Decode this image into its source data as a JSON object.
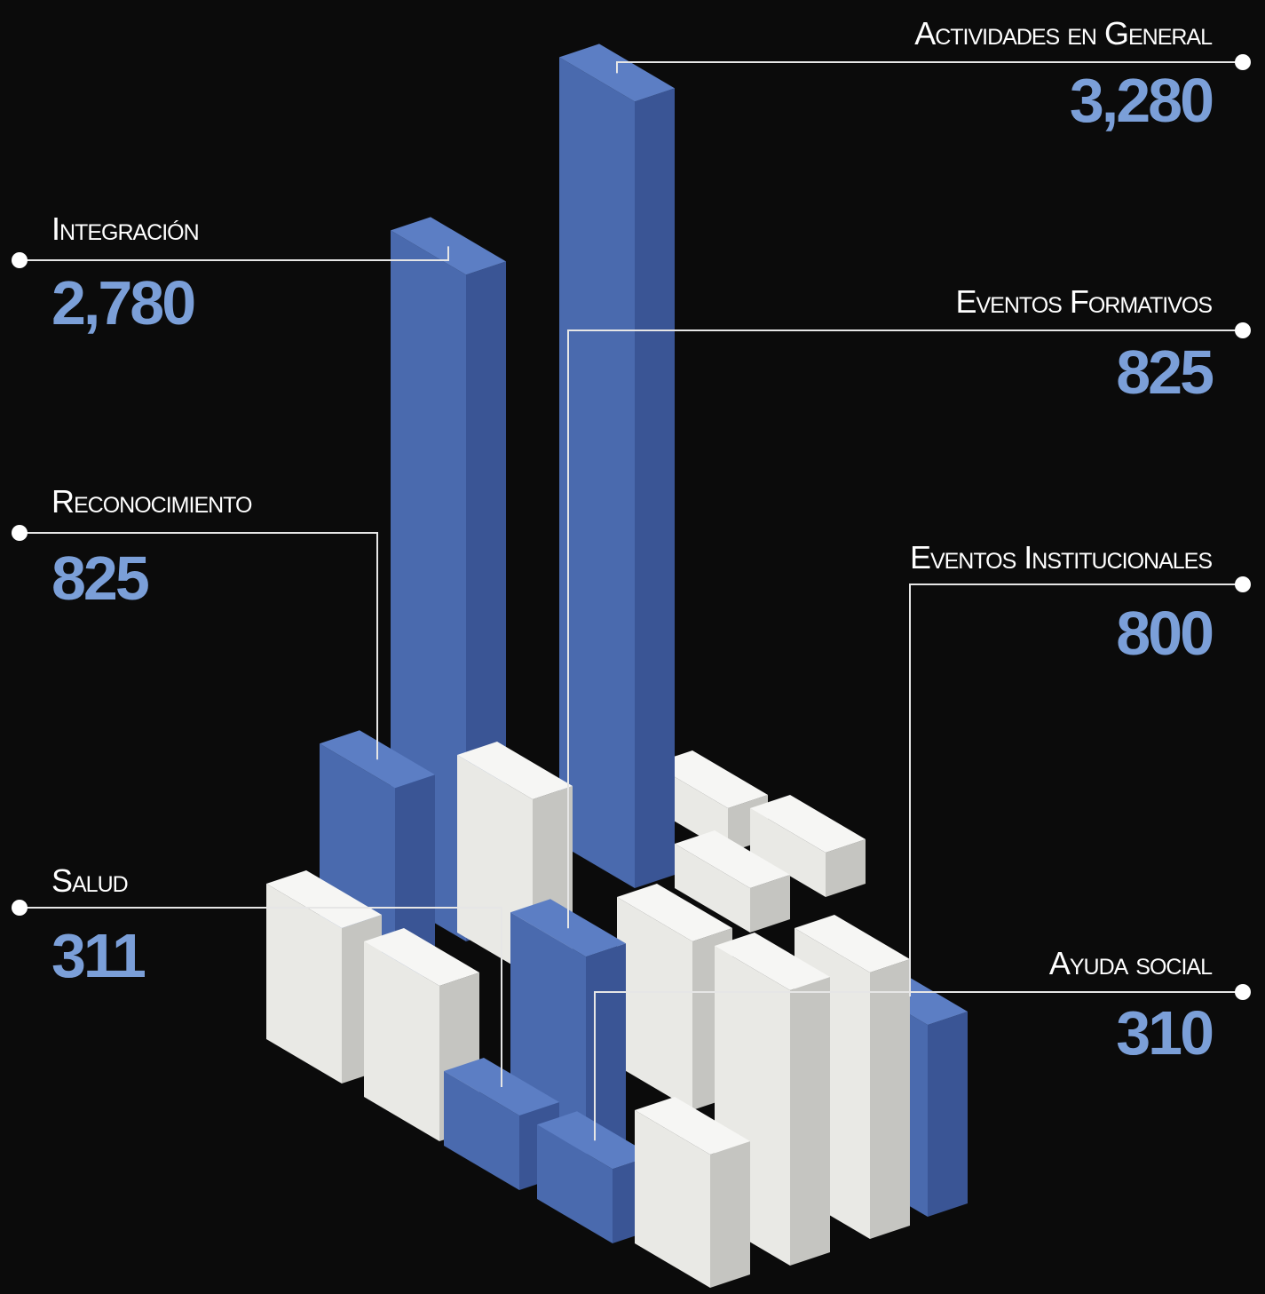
{
  "chart_data": {
    "type": "bar",
    "categories": [
      "Actividades en General",
      "Integración",
      "Eventos Formativos",
      "Reconocimiento",
      "Eventos Institucionales",
      "Salud",
      "Ayuda social"
    ],
    "values": [
      3280,
      2780,
      825,
      825,
      800,
      311,
      310
    ],
    "value_labels": [
      "3,280",
      "2,780",
      "825",
      "825",
      "800",
      "311",
      "310"
    ],
    "color": "#4a6aae"
  }
}
